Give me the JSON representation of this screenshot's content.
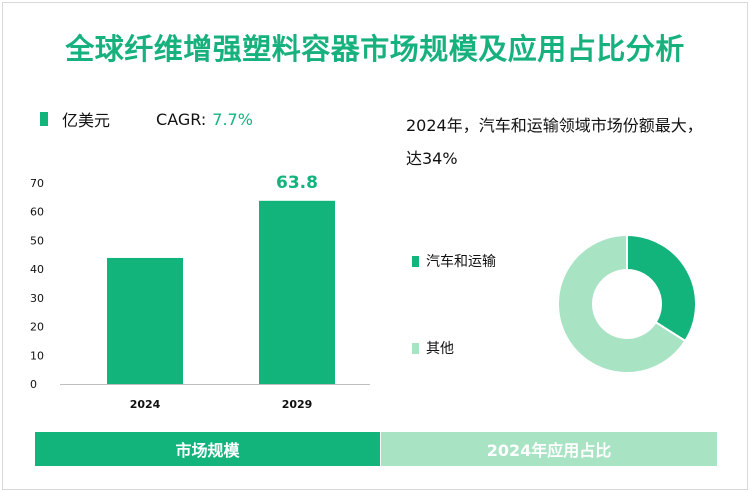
{
  "title": "全球纤维增强塑料容器市场规模及应用占比分析",
  "legend": {
    "unit": "亿美元",
    "cagr_label": "CAGR:",
    "cagr_value": "7.7%"
  },
  "insight": "2024年，汽车和运输领域市场份额最大，达34%",
  "colors": {
    "accent": "#12b47c",
    "light": "#a8e3c4",
    "title": "#17b27c"
  },
  "tabs": {
    "left": "市场规模",
    "right": "2024年应用占比"
  },
  "chart_data": [
    {
      "type": "bar",
      "title": "市场规模",
      "categories": [
        "2024",
        "2029"
      ],
      "values": [
        43.9,
        63.8
      ],
      "data_labels": [
        "",
        "63.8"
      ],
      "ylim": [
        0,
        70
      ],
      "yticks": [
        0,
        10,
        20,
        30,
        40,
        50,
        60,
        70
      ],
      "xlabel": "",
      "ylabel": "亿美元",
      "grid": false
    },
    {
      "type": "pie",
      "title": "2024年应用占比",
      "labels": [
        "汽车和运输",
        "其他"
      ],
      "values": [
        34,
        66
      ],
      "colors": [
        "#12b47c",
        "#a8e3c4"
      ],
      "donut": true
    }
  ]
}
